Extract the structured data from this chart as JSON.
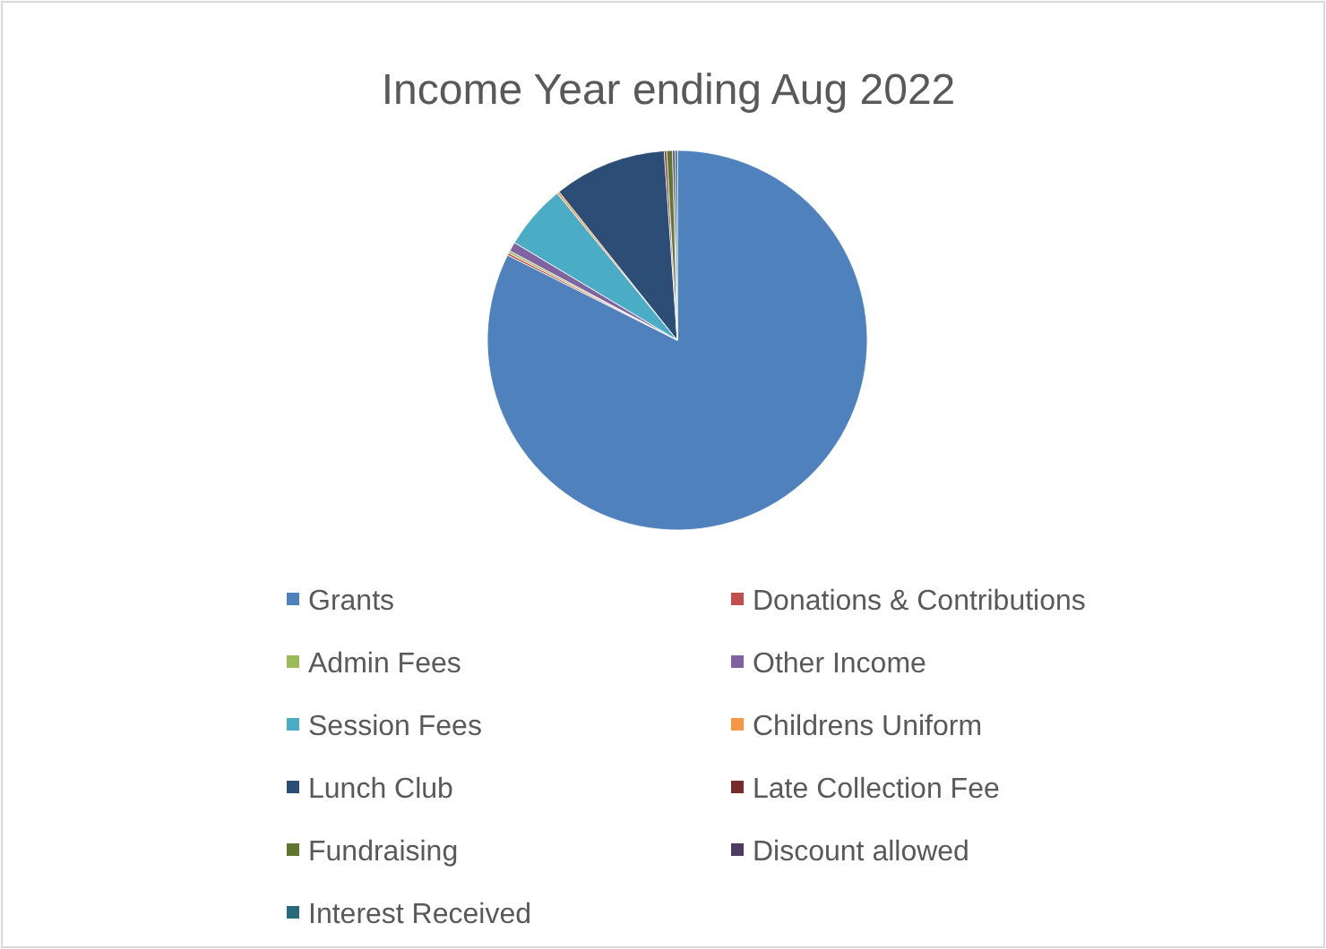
{
  "chart_data": {
    "type": "pie",
    "title": "Income Year ending Aug 2022",
    "categories": [
      "Grants",
      "Donations & Contributions",
      "Admin Fees",
      "Other Income",
      "Session Fees",
      "Childrens Uniform",
      "Lunch Club",
      "Late Collection Fee",
      "Fundraising",
      "Discount allowed",
      "Interest Received"
    ],
    "values": [
      82.4,
      0.2,
      0.2,
      0.8,
      5.5,
      0.2,
      9.6,
      0.2,
      0.5,
      0.2,
      0.2
    ],
    "colors": [
      "#4f81bd",
      "#c0504d",
      "#9bbb59",
      "#8064a2",
      "#4bacc6",
      "#f79646",
      "#2c4d75",
      "#772c2a",
      "#5f7530",
      "#4d3b62",
      "#276a7c"
    ],
    "legend": "bottom"
  }
}
